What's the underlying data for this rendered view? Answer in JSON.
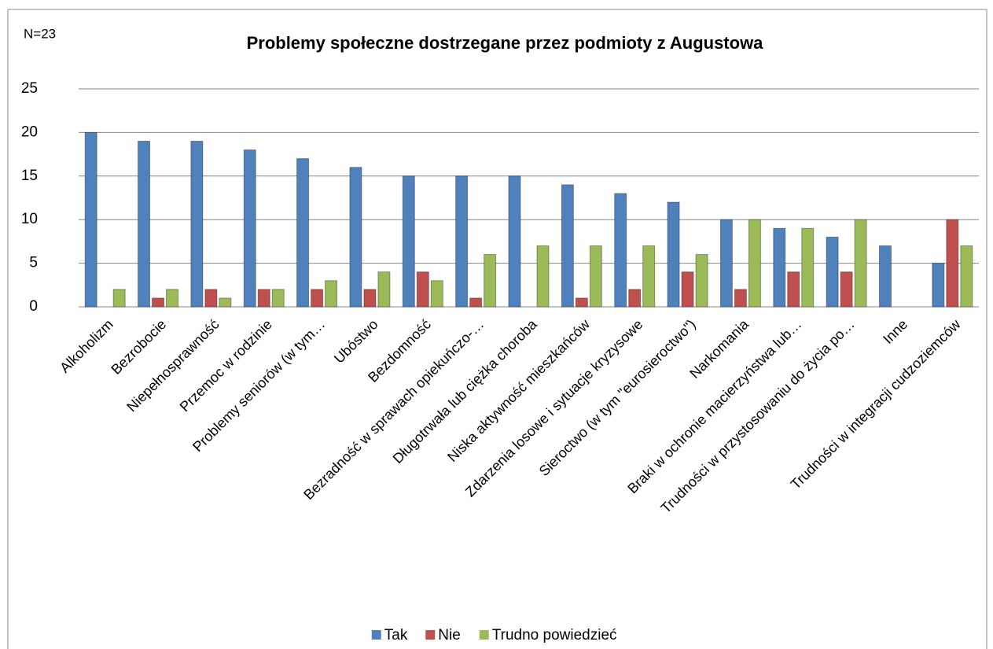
{
  "chart_data": {
    "type": "bar",
    "title": "Problemy społeczne dostrzegane przez podmioty z Augustowa",
    "annotation": "N=23",
    "categories": [
      "Alkoholizm",
      "Bezrobocie",
      "Niepełnosprawność",
      "Przemoc w rodzinie",
      "Problemy seniorów (w tym…",
      "Ubóstwo",
      "Bezdomność",
      "Bezradność w sprawach opiekuńczo-…",
      "Długotrwała lub ciężka choroba",
      "Niska aktywność mieszkańców",
      "Zdarzenia losowe i sytuacje kryzysowe",
      "Sieroctwo (w tym \"eurosieroctwo\")",
      "Narkomania",
      "Braki w ochronie macierzyństwa lub…",
      "Trudności w przystosowaniu do życia po…",
      "Inne",
      "Trudności w integracji cudzoziemców"
    ],
    "series": [
      {
        "name": "Tak",
        "color": "#4f81bd",
        "values": [
          20,
          19,
          19,
          18,
          17,
          16,
          15,
          15,
          15,
          14,
          13,
          12,
          10,
          9,
          8,
          7,
          5
        ]
      },
      {
        "name": "Nie",
        "color": "#c0504d",
        "values": [
          0,
          1,
          2,
          2,
          2,
          2,
          4,
          1,
          0,
          1,
          2,
          4,
          2,
          4,
          4,
          0,
          10
        ]
      },
      {
        "name": "Trudno powiedzieć",
        "color": "#9bbb59",
        "values": [
          2,
          2,
          1,
          2,
          3,
          4,
          3,
          6,
          7,
          7,
          7,
          6,
          10,
          9,
          10,
          0,
          7
        ]
      }
    ],
    "ylim": [
      0,
      25
    ],
    "yticks": [
      0,
      5,
      10,
      15,
      20,
      25
    ],
    "grid": true,
    "legend": "bottom"
  }
}
